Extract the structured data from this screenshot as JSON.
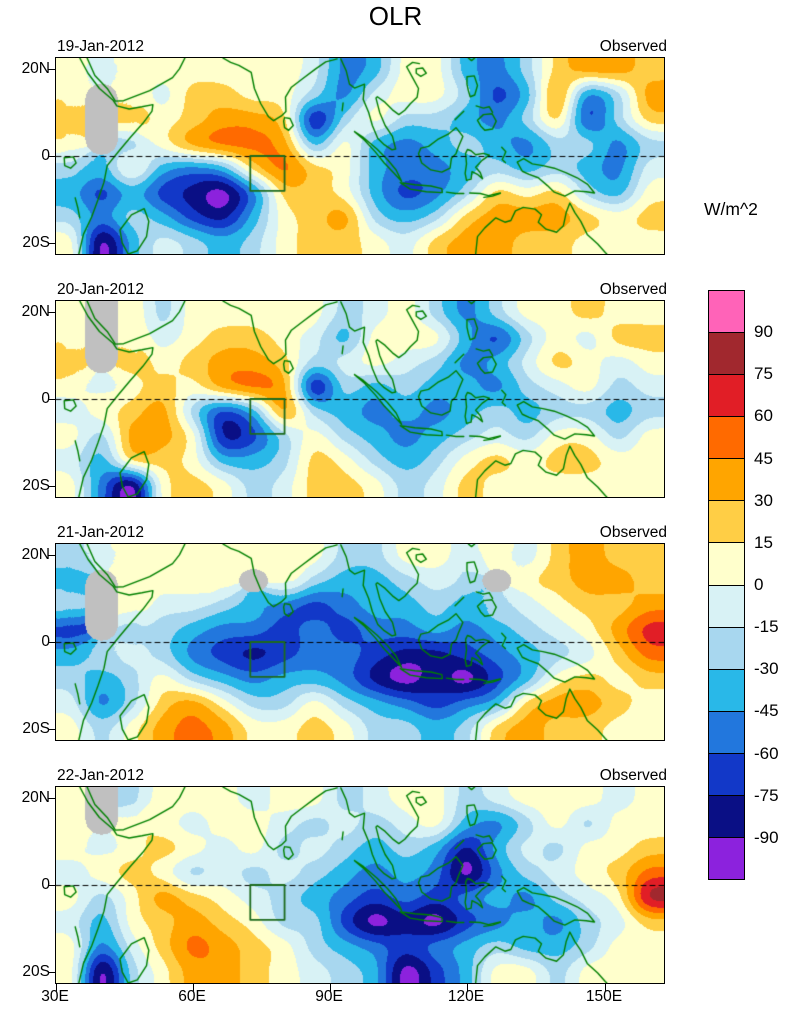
{
  "map": {
    "coastline_color": "#008000",
    "region_box_color": "#1d6b1d",
    "equator_line_color": "#000000"
  },
  "chart_data": {
    "type": "heatmap",
    "title": "OLR",
    "units": "W/m^2",
    "x_tick_labels": [
      "30E",
      "60E",
      "90E",
      "120E",
      "150E"
    ],
    "x_tick_lons": [
      30,
      60,
      90,
      120,
      150
    ],
    "y_tick_labels": [
      "20N",
      "0",
      "20S"
    ],
    "y_tick_lats": [
      20,
      0,
      -20
    ],
    "lon_range": [
      30,
      163
    ],
    "lat_range": [
      -22.5,
      22.5
    ],
    "region_box": {
      "lon_min": 72.5,
      "lon_max": 80,
      "lat_min": -8,
      "lat_max": 0
    },
    "colorbar": {
      "label": "W/m^2",
      "boundary_labels": [
        "90",
        "75",
        "60",
        "45",
        "30",
        "15",
        "0",
        "-15",
        "-30",
        "-45",
        "-60",
        "-75",
        "-90"
      ],
      "levels_high_to_low": [
        90,
        75,
        60,
        45,
        30,
        15,
        0,
        -15,
        -30,
        -45,
        -60,
        -75,
        -90
      ],
      "colors_high_to_low": [
        "#FF63B8",
        "#A1282E",
        "#E11E26",
        "#FF6A00",
        "#FFA500",
        "#FFCE45",
        "#FFFFCC",
        "#D8F2F5",
        "#A8D7EF",
        "#29B8E8",
        "#2277DD",
        "#1238C8",
        "#0A0F85",
        "#8C22DD"
      ],
      "missing_color": "#C0C0C0"
    },
    "panels": [
      {
        "label": "19-Jan-2012",
        "annotation": "Observed",
        "values": [
          [
            8,
            -8,
            8,
            8,
            8,
            8,
            8,
            8,
            -8,
            -52,
            -38,
            8,
            8,
            -38,
            -52,
            -22,
            22,
            38,
            38,
            22
          ],
          [
            8,
            null,
            8,
            -8,
            22,
            22,
            8,
            8,
            -22,
            -52,
            -8,
            8,
            8,
            -22,
            -68,
            -38,
            38,
            -52,
            -22,
            38
          ],
          [
            22,
            null,
            22,
            8,
            22,
            38,
            38,
            22,
            -82,
            -22,
            8,
            -22,
            -22,
            -38,
            -52,
            -22,
            22,
            -68,
            -22,
            22
          ],
          [
            8,
            null,
            -22,
            8,
            38,
            52,
            52,
            38,
            -38,
            8,
            -38,
            -52,
            -38,
            -22,
            -38,
            -52,
            -22,
            -22,
            -52,
            -22
          ],
          [
            -22,
            -38,
            8,
            -38,
            -52,
            -38,
            22,
            52,
            22,
            8,
            -38,
            -52,
            -52,
            -38,
            -22,
            -38,
            -22,
            -38,
            -52,
            -8
          ],
          [
            -38,
            -68,
            -38,
            -68,
            -82,
            -100,
            -52,
            22,
            22,
            8,
            -38,
            -68,
            -52,
            -22,
            22,
            8,
            22,
            -22,
            -38,
            8
          ],
          [
            -22,
            -52,
            -22,
            -38,
            -68,
            -82,
            -38,
            8,
            22,
            38,
            -22,
            -38,
            -22,
            22,
            38,
            38,
            38,
            22,
            8,
            22
          ],
          [
            8,
            -100,
            -38,
            -8,
            -22,
            -38,
            -22,
            8,
            22,
            22,
            8,
            -8,
            22,
            38,
            38,
            22,
            22,
            8,
            8,
            8
          ]
        ]
      },
      {
        "label": "20-Jan-2012",
        "annotation": "Observed",
        "values": [
          [
            8,
            null,
            8,
            -22,
            8,
            8,
            8,
            8,
            8,
            -22,
            -8,
            8,
            -22,
            -52,
            -22,
            8,
            8,
            22,
            8,
            8
          ],
          [
            8,
            null,
            8,
            -8,
            8,
            22,
            22,
            8,
            -8,
            -38,
            8,
            8,
            8,
            -38,
            -68,
            -22,
            8,
            -8,
            22,
            22
          ],
          [
            22,
            null,
            22,
            8,
            22,
            38,
            38,
            22,
            -22,
            -8,
            8,
            -8,
            -22,
            -52,
            -38,
            -8,
            22,
            8,
            -8,
            8
          ],
          [
            8,
            -8,
            8,
            22,
            8,
            38,
            52,
            38,
            -82,
            -22,
            -38,
            -22,
            -38,
            -38,
            -52,
            -22,
            -8,
            8,
            -22,
            -8
          ],
          [
            -8,
            8,
            22,
            38,
            -22,
            -68,
            -38,
            38,
            -22,
            -38,
            -52,
            -38,
            -52,
            -38,
            -22,
            -38,
            -22,
            -22,
            -38,
            -22
          ],
          [
            8,
            -22,
            38,
            38,
            8,
            -82,
            -68,
            -22,
            8,
            -22,
            -38,
            -52,
            -38,
            -22,
            -8,
            -22,
            8,
            8,
            -22,
            8
          ],
          [
            -8,
            -38,
            22,
            22,
            8,
            -38,
            -38,
            -22,
            22,
            8,
            -22,
            -38,
            -22,
            8,
            22,
            8,
            22,
            22,
            8,
            8
          ],
          [
            8,
            -52,
            -100,
            8,
            22,
            8,
            -22,
            -8,
            22,
            22,
            8,
            -22,
            -8,
            22,
            8,
            8,
            8,
            8,
            8,
            8
          ]
        ]
      },
      {
        "label": "21-Jan-2012",
        "annotation": "Observed",
        "values": [
          [
            -22,
            -8,
            8,
            8,
            8,
            8,
            8,
            8,
            8,
            -22,
            -22,
            8,
            8,
            -8,
            8,
            -8,
            22,
            38,
            22,
            22
          ],
          [
            -38,
            null,
            8,
            8,
            8,
            8,
            null,
            8,
            -22,
            -38,
            -38,
            -22,
            -8,
            -22,
            null,
            8,
            22,
            38,
            38,
            22
          ],
          [
            -22,
            null,
            8,
            -8,
            -8,
            -22,
            -38,
            -52,
            -68,
            -52,
            -38,
            -38,
            -22,
            -38,
            -22,
            -8,
            8,
            22,
            22,
            38
          ],
          [
            -68,
            null,
            -22,
            -22,
            -38,
            -52,
            -52,
            -68,
            -52,
            -68,
            -52,
            -52,
            -38,
            -52,
            -38,
            -22,
            -8,
            8,
            38,
            68
          ],
          [
            -38,
            -22,
            -8,
            -22,
            -52,
            -68,
            -82,
            -68,
            -52,
            -52,
            -68,
            -82,
            -82,
            -68,
            -52,
            -38,
            -22,
            -8,
            22,
            52
          ],
          [
            -22,
            -38,
            -22,
            8,
            -22,
            -38,
            -52,
            -38,
            -38,
            -52,
            -82,
            -100,
            -82,
            -100,
            -68,
            -38,
            8,
            22,
            8,
            22
          ],
          [
            -8,
            -52,
            -22,
            22,
            38,
            8,
            -22,
            -22,
            8,
            -22,
            -38,
            -52,
            -68,
            -52,
            -38,
            22,
            38,
            38,
            22,
            8
          ],
          [
            8,
            -22,
            8,
            38,
            52,
            38,
            8,
            8,
            22,
            8,
            -22,
            -22,
            -38,
            -22,
            22,
            38,
            22,
            22,
            8,
            8
          ]
        ]
      },
      {
        "label": "22-Jan-2012",
        "annotation": "Observed",
        "values": [
          [
            8,
            null,
            -22,
            8,
            8,
            8,
            -8,
            8,
            8,
            -22,
            -8,
            8,
            8,
            -22,
            -8,
            8,
            8,
            8,
            -8,
            8
          ],
          [
            8,
            null,
            8,
            8,
            -8,
            8,
            8,
            -8,
            -22,
            -8,
            -22,
            -8,
            8,
            -38,
            -52,
            -22,
            8,
            -22,
            8,
            8
          ],
          [
            8,
            -8,
            8,
            22,
            8,
            -8,
            8,
            -22,
            -8,
            -22,
            -38,
            -22,
            -38,
            -82,
            -38,
            -8,
            -22,
            8,
            8,
            22
          ],
          [
            -8,
            8,
            22,
            8,
            -22,
            -8,
            -22,
            -8,
            -22,
            -38,
            -52,
            -38,
            -52,
            -100,
            -52,
            -22,
            -8,
            8,
            22,
            52
          ],
          [
            8,
            -22,
            8,
            38,
            22,
            8,
            -8,
            -22,
            -38,
            -52,
            -68,
            -52,
            -68,
            -52,
            -38,
            -52,
            -22,
            -8,
            8,
            82
          ],
          [
            -8,
            -38,
            8,
            22,
            38,
            22,
            8,
            -22,
            -22,
            -68,
            -100,
            -82,
            -100,
            -68,
            -52,
            -38,
            -52,
            -22,
            -8,
            22
          ],
          [
            8,
            -52,
            -8,
            22,
            52,
            38,
            22,
            8,
            -22,
            -38,
            -52,
            -68,
            -52,
            -38,
            -22,
            -38,
            -38,
            -22,
            8,
            8
          ],
          [
            8,
            -100,
            -22,
            8,
            38,
            38,
            22,
            8,
            -8,
            -22,
            -38,
            -100,
            -68,
            -38,
            8,
            8,
            -22,
            8,
            8,
            8
          ]
        ]
      }
    ]
  }
}
